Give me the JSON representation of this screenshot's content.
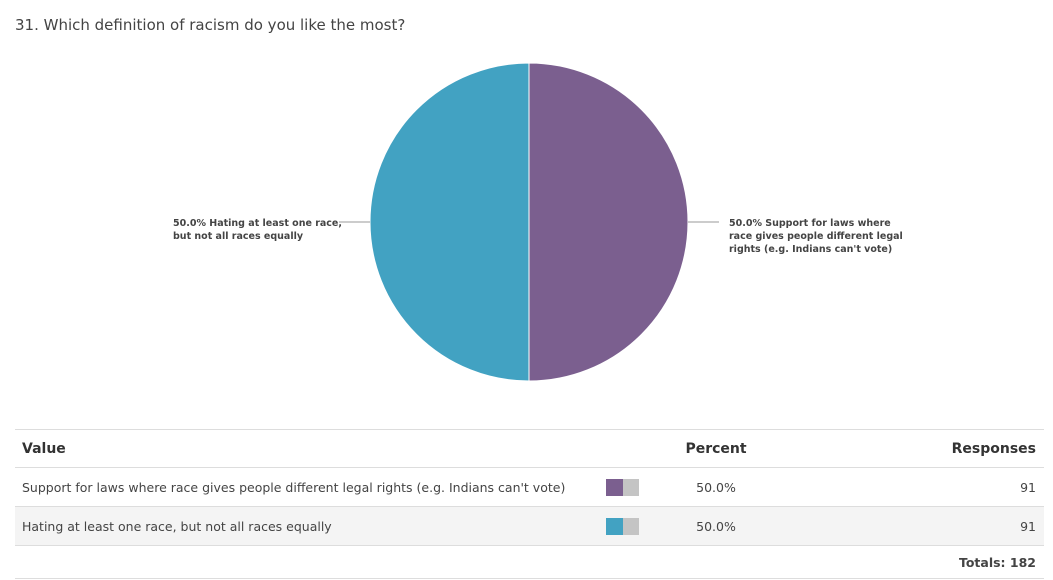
{
  "question": {
    "title": "31. Which definition of racism do you like the most?"
  },
  "chart_data": {
    "type": "pie",
    "slices": [
      {
        "label_lines": [
          "50.0% Support for laws where",
          "race gives people different legal",
          "rights (e.g. Indians can't vote)"
        ],
        "value": 50.0,
        "color": "#7b5f8f"
      },
      {
        "label_lines": [
          "50.0% Hating at least one race,",
          "but not all races equally"
        ],
        "value": 50.0,
        "color": "#42a2c2"
      }
    ]
  },
  "table": {
    "headers": {
      "value": "Value",
      "percent": "Percent",
      "responses": "Responses"
    },
    "rows": [
      {
        "value": "Support for laws where race gives people different legal rights (e.g. Indians can't vote)",
        "percent": "50.0%",
        "percent_value": 50.0,
        "responses": "91",
        "color": "#7b5f8f"
      },
      {
        "value": "Hating at least one race, but not all races equally",
        "percent": "50.0%",
        "percent_value": 50.0,
        "responses": "91",
        "color": "#42a2c2"
      }
    ],
    "totals": "Totals: 182"
  }
}
